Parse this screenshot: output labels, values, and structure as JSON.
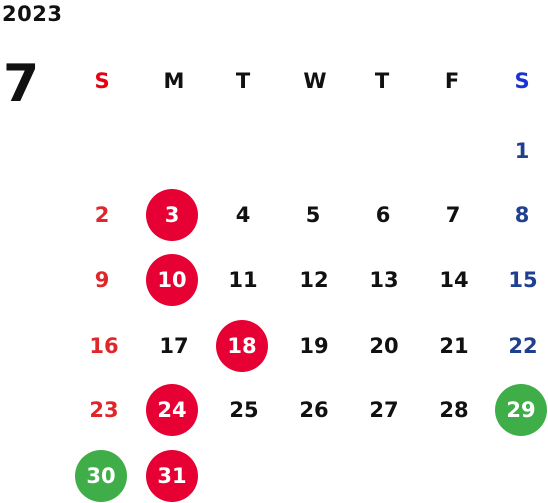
{
  "calendar": {
    "year": "2023",
    "month": "7",
    "weekdays": [
      "S",
      "M",
      "T",
      "W",
      "T",
      "F",
      "S"
    ],
    "weeks": [
      [
        "",
        "",
        "",
        "",
        "",
        "",
        "1"
      ],
      [
        "2",
        "3",
        "4",
        "5",
        "6",
        "7",
        "8"
      ],
      [
        "9",
        "10",
        "11",
        "12",
        "13",
        "14",
        "15"
      ],
      [
        "16",
        "17",
        "18",
        "19",
        "20",
        "21",
        "22"
      ],
      [
        "23",
        "24",
        "25",
        "26",
        "27",
        "28",
        "29"
      ],
      [
        "30",
        "31",
        "",
        "",
        "",
        "",
        ""
      ]
    ],
    "highlighted_red": [
      "3",
      "10",
      "18",
      "24",
      "31"
    ],
    "highlighted_green": [
      "29",
      "30"
    ],
    "colors": {
      "sunday_text": "#e0262b",
      "saturday_text": "#1f3f8f",
      "header_sunday": "#e60012",
      "header_saturday": "#1a34d4",
      "red_highlight": "#e60033",
      "green_highlight": "#3fae49",
      "default_text": "#111111"
    }
  }
}
